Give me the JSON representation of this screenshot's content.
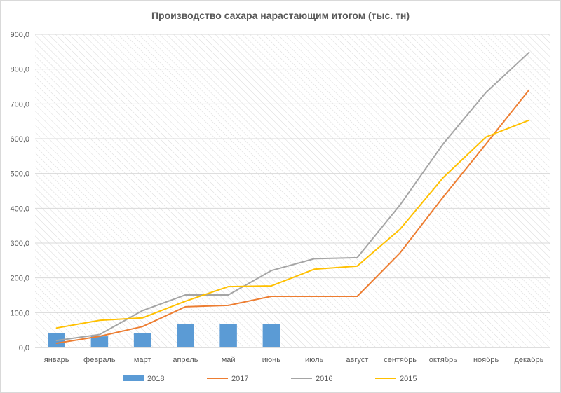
{
  "chart_data": {
    "type": "bar+line",
    "title": "Производство сахара нарастающим итогом (тыс. тн)",
    "categories": [
      "январь",
      "февраль",
      "март",
      "апрель",
      "май",
      "июнь",
      "июль",
      "август",
      "сентябрь",
      "октябрь",
      "ноябрь",
      "декабрь"
    ],
    "ylim": [
      0,
      900
    ],
    "yticks": [
      0,
      100,
      200,
      300,
      400,
      500,
      600,
      700,
      800,
      900
    ],
    "ytick_labels": [
      "0,0",
      "100,0",
      "200,0",
      "300,0",
      "400,0",
      "500,0",
      "600,0",
      "700,0",
      "800,0",
      "900,0"
    ],
    "grid": "hatched",
    "legend_position": "bottom",
    "series": [
      {
        "name": "2018",
        "kind": "bar",
        "color": "#5b9bd5",
        "values": [
          41,
          32,
          41,
          67,
          67,
          67,
          null,
          null,
          null,
          null,
          null,
          null
        ]
      },
      {
        "name": "2017",
        "kind": "line",
        "color": "#ed7d31",
        "values": [
          12,
          32,
          60,
          117,
          121,
          147,
          147,
          147,
          272,
          432,
          585,
          740
        ]
      },
      {
        "name": "2016",
        "kind": "line",
        "color": "#a5a5a5",
        "values": [
          20,
          37,
          106,
          151,
          151,
          221,
          255,
          258,
          410,
          585,
          733,
          848
        ]
      },
      {
        "name": "2015",
        "kind": "line",
        "color": "#ffc000",
        "values": [
          56,
          78,
          85,
          133,
          175,
          177,
          225,
          234,
          340,
          488,
          605,
          653
        ]
      }
    ]
  }
}
